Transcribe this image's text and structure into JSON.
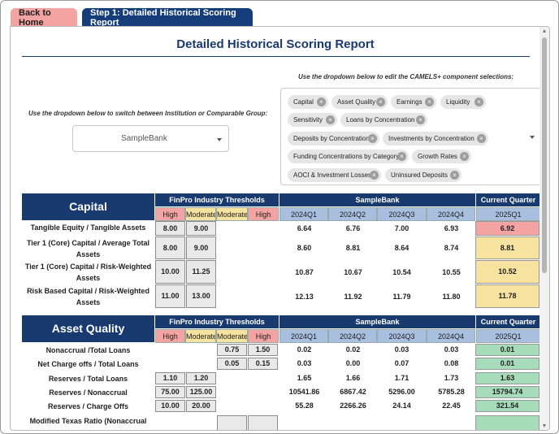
{
  "tabs": [
    {
      "label": "Back to Home"
    },
    {
      "label": "Step 1: Detailed Historical Scoring Report"
    }
  ],
  "report": {
    "title": "Detailed Historical Scoring Report"
  },
  "selector": {
    "institution_note": "Use the dropdown below to switch between Institution or Comparable Group:",
    "institution_value": "SampleBank",
    "components_note": "Use the dropdown below to edit the CAMELS+ component selections:",
    "components": [
      "Capital",
      "Asset Quality",
      "Earnings",
      "Liquidity",
      "Sensitivity",
      "Loans by Concentration",
      "Deposits by Concentration",
      "Investments by Concentration",
      "Funding Concentrations by Category",
      "Growth Rates",
      "AOCI & Investment Losses",
      "Uninsured Deposits"
    ]
  },
  "headers": {
    "thresholds": "FinPro Industry Thresholds",
    "bank": "SampleBank",
    "current": "Current Quarter",
    "high": "High",
    "moderate": "Moderate",
    "quarters": [
      "2024Q1",
      "2024Q2",
      "2024Q3",
      "2024Q4"
    ],
    "current_quarter": "2025Q1"
  },
  "capital": {
    "title": "Capital",
    "rows": [
      {
        "label": "Tangible Equity / Tangible Assets",
        "high": "8.00",
        "moderate": "9.00",
        "values": [
          "6.64",
          "6.76",
          "7.00",
          "6.93"
        ],
        "current": "6.92",
        "status": "red"
      },
      {
        "label": "Tier 1 (Core) Capital / Average Total Assets",
        "high": "8.00",
        "moderate": "9.00",
        "values": [
          "8.60",
          "8.81",
          "8.64",
          "8.74"
        ],
        "current": "8.81",
        "status": "yellow"
      },
      {
        "label": "Tier 1 (Core) Capital / Risk-Weighted Assets",
        "high": "10.00",
        "moderate": "11.25",
        "values": [
          "10.87",
          "10.67",
          "10.54",
          "10.55"
        ],
        "current": "10.52",
        "status": "yellow"
      },
      {
        "label": "Risk Based Capital / Risk-Weighted Assets",
        "high": "11.00",
        "moderate": "13.00",
        "values": [
          "12.13",
          "11.92",
          "11.79",
          "11.80"
        ],
        "current": "11.78",
        "status": "yellow"
      }
    ]
  },
  "asset_quality": {
    "title": "Asset Quality",
    "rows": [
      {
        "label": "Nonaccrual /Total Loans",
        "high": "",
        "moderate": "",
        "moderate2": "0.75",
        "high2": "1.50",
        "values": [
          "0.02",
          "0.02",
          "0.03",
          "0.03"
        ],
        "current": "0.01",
        "status": "green"
      },
      {
        "label": "Net Charge offs / Total Loans",
        "high": "",
        "moderate": "",
        "moderate2": "0.05",
        "high2": "0.15",
        "values": [
          "0.03",
          "0.00",
          "0.07",
          "0.08"
        ],
        "current": "0.01",
        "status": "green"
      },
      {
        "label": "Reserves / Total Loans",
        "high": "1.10",
        "moderate": "1.20",
        "moderate2": "",
        "high2": "",
        "values": [
          "1.65",
          "1.66",
          "1.71",
          "1.73"
        ],
        "current": "1.63",
        "status": "green"
      },
      {
        "label": "Reserves / Nonaccrual",
        "high": "75.00",
        "moderate": "125.00",
        "moderate2": "",
        "high2": "",
        "values": [
          "10541.86",
          "6867.42",
          "5296.00",
          "5785.28"
        ],
        "current": "15794.74",
        "status": "green"
      },
      {
        "label": "Reserves / Charge Offs",
        "high": "10.00",
        "moderate": "20.00",
        "moderate2": "",
        "high2": "",
        "values": [
          "55.28",
          "2266.26",
          "24.14",
          "22.45"
        ],
        "current": "321.54",
        "status": "green"
      },
      {
        "label": "Modified Texas Ratio (Nonaccrual",
        "high": "",
        "moderate": "",
        "moderate2": "",
        "high2": "",
        "values": [
          "",
          "",
          "",
          ""
        ],
        "current": "",
        "status": "green"
      }
    ]
  },
  "colors": {
    "navy": "#183a6e",
    "high": "#f4a3a3",
    "moderate": "#f7e3a0",
    "quarter": "#a8bfe0",
    "green": "#a6dcb9"
  }
}
